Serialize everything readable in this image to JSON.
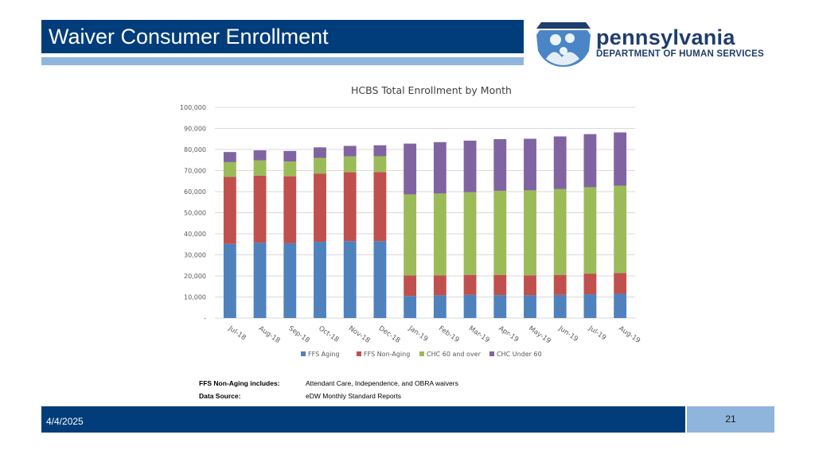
{
  "header": {
    "title": "Waiver Consumer Enrollment"
  },
  "logo": {
    "name": "pennsylvania",
    "department": "DEPARTMENT OF HUMAN SERVICES",
    "icon": "pa-family-keystone-icon",
    "color": "#1f3d6e",
    "icon_color": "#4a86c5"
  },
  "chart_data": {
    "type": "bar",
    "stacked": true,
    "title": "HCBS Total Enrollment by Month",
    "categories": [
      "Jul-18",
      "Aug-18",
      "Sep-18",
      "Oct-18",
      "Nov-18",
      "Dec-18",
      "Jan-19",
      "Feb-19",
      "Mar-19",
      "Apr-19",
      "May-19",
      "Jun-19",
      "Jul-19",
      "Aug-19"
    ],
    "ylim": [
      0,
      100000
    ],
    "ytick_labels": [
      "-",
      "10,000",
      "20,000",
      "30,000",
      "40,000",
      "50,000",
      "60,000",
      "70,000",
      "80,000",
      "90,000",
      "100,000"
    ],
    "ytick_values": [
      0,
      10000,
      20000,
      30000,
      40000,
      50000,
      60000,
      70000,
      80000,
      90000,
      100000
    ],
    "grid": true,
    "legend_position": "bottom",
    "series": [
      {
        "name": "FFS Aging",
        "color": "#4f81bd",
        "values": [
          35200,
          35800,
          35500,
          36200,
          36500,
          36500,
          10500,
          10800,
          11000,
          10900,
          10800,
          11000,
          11300,
          11500
        ]
      },
      {
        "name": "FFS Non-Aging",
        "color": "#c0504d",
        "values": [
          31800,
          31800,
          31800,
          32300,
          32700,
          32800,
          9700,
          9500,
          9500,
          9600,
          9500,
          9500,
          9800,
          9900
        ]
      },
      {
        "name": "CHC 60 and over",
        "color": "#9bbb59",
        "values": [
          7000,
          7200,
          7000,
          7500,
          7500,
          7500,
          38500,
          38800,
          39200,
          39900,
          40300,
          40700,
          41000,
          41400
        ]
      },
      {
        "name": "CHC Under 60",
        "color": "#8064a2",
        "values": [
          4800,
          4800,
          5000,
          5000,
          5000,
          5200,
          24100,
          24400,
          24500,
          24500,
          24500,
          25000,
          25200,
          25300
        ]
      }
    ]
  },
  "notes": [
    {
      "label": "FFS Non-Aging includes:",
      "value": "Attendant Care, Independence, and OBRA waivers"
    },
    {
      "label": "Data Source:",
      "value": "eDW Monthly Standard Reports"
    }
  ],
  "footer": {
    "date": "4/4/2025",
    "page": "21"
  },
  "colors": {
    "primary": "#003d7a",
    "accent": "#8fb5dc"
  }
}
